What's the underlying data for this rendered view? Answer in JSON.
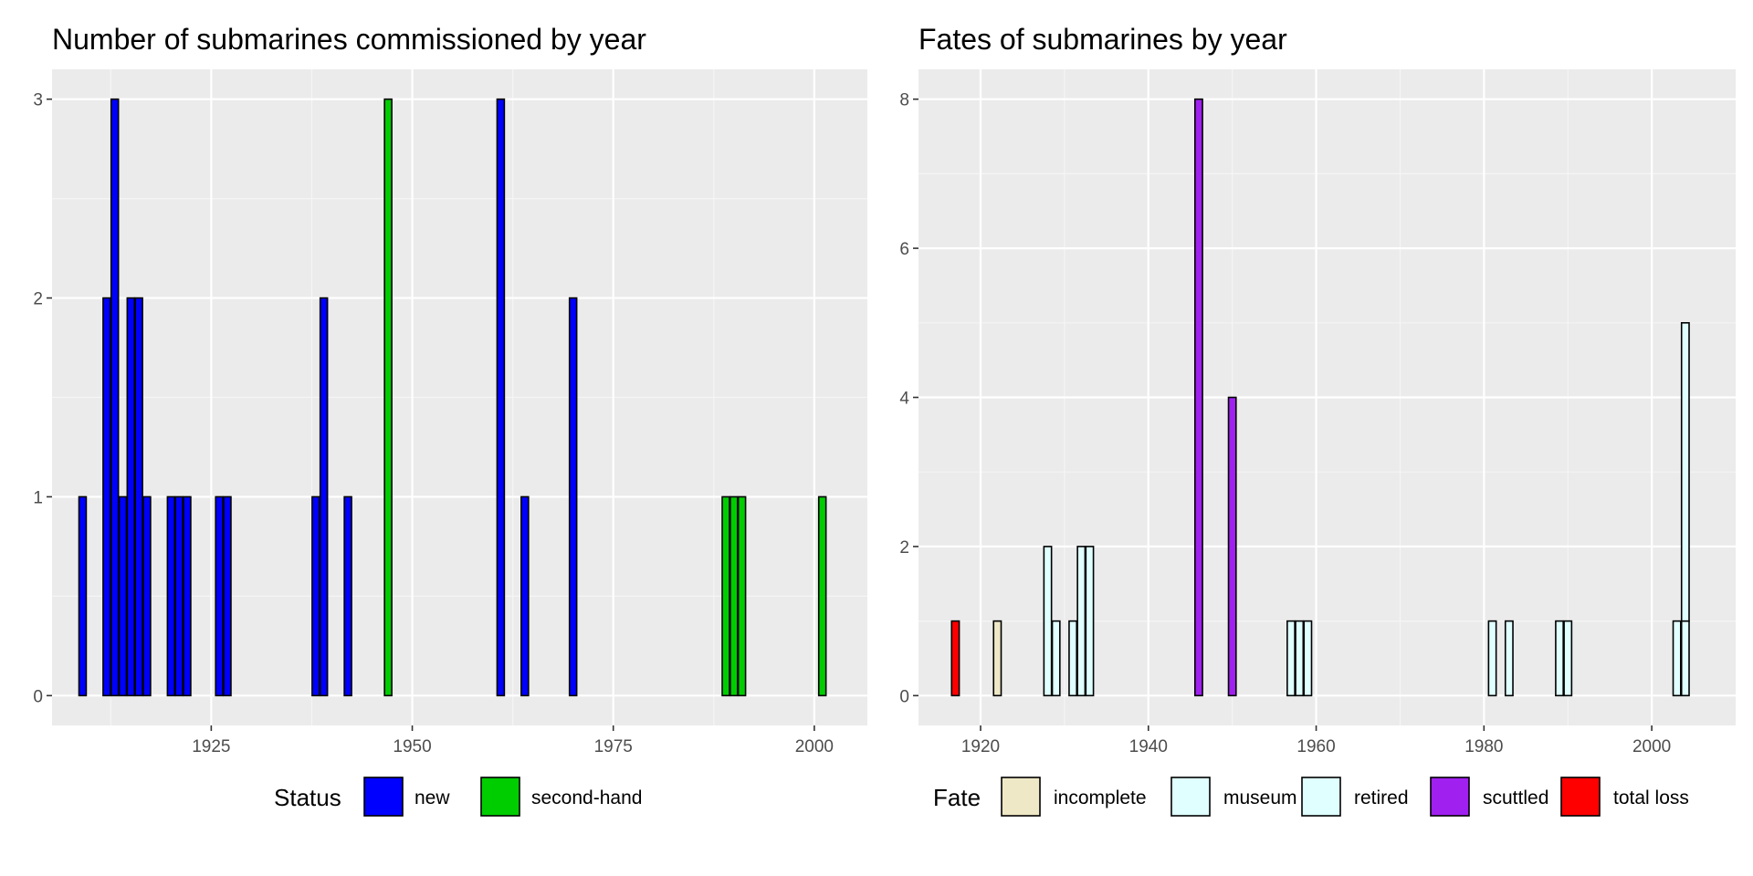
{
  "panels": [
    {
      "title": "Number of submarines commissioned by year",
      "chart_data": {
        "type": "bar",
        "stacked": true,
        "title": "Number of submarines commissioned by year",
        "xlabel": "",
        "ylabel": "",
        "xlim": [
          1905.2,
          2006.6
        ],
        "ylim": [
          -0.15,
          3.15
        ],
        "xticks": [
          1925,
          1950,
          1975,
          2000
        ],
        "yticks": [
          0,
          1,
          2,
          3
        ],
        "grid": true,
        "legend": {
          "title": "Status",
          "position": "bottom"
        },
        "colors": {
          "new": "#0000ff",
          "second-hand": "#00cd00"
        },
        "series": [
          {
            "name": "new",
            "points": [
              {
                "x": 1909,
                "y": 1
              },
              {
                "x": 1912,
                "y": 2
              },
              {
                "x": 1913,
                "y": 3
              },
              {
                "x": 1914,
                "y": 1
              },
              {
                "x": 1915,
                "y": 2
              },
              {
                "x": 1916,
                "y": 2
              },
              {
                "x": 1917,
                "y": 1
              },
              {
                "x": 1920,
                "y": 1
              },
              {
                "x": 1921,
                "y": 1
              },
              {
                "x": 1922,
                "y": 1
              },
              {
                "x": 1926,
                "y": 1
              },
              {
                "x": 1927,
                "y": 1
              },
              {
                "x": 1938,
                "y": 1
              },
              {
                "x": 1939,
                "y": 2
              },
              {
                "x": 1942,
                "y": 1
              },
              {
                "x": 1961,
                "y": 3
              },
              {
                "x": 1964,
                "y": 1
              },
              {
                "x": 1970,
                "y": 2
              }
            ]
          },
          {
            "name": "second-hand",
            "points": [
              {
                "x": 1947,
                "y": 3
              },
              {
                "x": 1989,
                "y": 1
              },
              {
                "x": 1990,
                "y": 1
              },
              {
                "x": 1991,
                "y": 1
              },
              {
                "x": 2001,
                "y": 1
              }
            ]
          }
        ]
      }
    },
    {
      "title": "Fates of submarines by year",
      "chart_data": {
        "type": "bar",
        "stacked": true,
        "title": "Fates of submarines by year",
        "xlabel": "",
        "ylabel": "",
        "xlim": [
          1912.6,
          2010.0
        ],
        "ylim": [
          -0.4,
          8.4
        ],
        "xticks": [
          1920,
          1940,
          1960,
          1980,
          2000
        ],
        "yticks": [
          0,
          2,
          4,
          6,
          8
        ],
        "grid": true,
        "legend": {
          "title": "Fate",
          "position": "bottom"
        },
        "colors": {
          "incomplete": "#eee8c6",
          "museum": "#e0ffff",
          "retired": "#e0ffff",
          "scuttled": "#a020f0",
          "total loss": "#ff0000"
        },
        "series": [
          {
            "name": "incomplete",
            "points": [
              {
                "x": 1922,
                "y": 1
              }
            ]
          },
          {
            "name": "museum",
            "points": [
              {
                "x": 2004,
                "y": 1
              }
            ]
          },
          {
            "name": "retired",
            "points": [
              {
                "x": 1928,
                "y": 2
              },
              {
                "x": 1929,
                "y": 1
              },
              {
                "x": 1931,
                "y": 1
              },
              {
                "x": 1932,
                "y": 2
              },
              {
                "x": 1933,
                "y": 2
              },
              {
                "x": 1957,
                "y": 1
              },
              {
                "x": 1958,
                "y": 1
              },
              {
                "x": 1959,
                "y": 1
              },
              {
                "x": 1981,
                "y": 1
              },
              {
                "x": 1983,
                "y": 1
              },
              {
                "x": 1989,
                "y": 1
              },
              {
                "x": 1990,
                "y": 1
              },
              {
                "x": 2003,
                "y": 1
              },
              {
                "x": 2004,
                "y": 4
              }
            ]
          },
          {
            "name": "scuttled",
            "points": [
              {
                "x": 1946,
                "y": 8
              },
              {
                "x": 1950,
                "y": 4
              }
            ]
          },
          {
            "name": "total loss",
            "points": [
              {
                "x": 1917,
                "y": 1
              }
            ]
          }
        ]
      }
    }
  ]
}
